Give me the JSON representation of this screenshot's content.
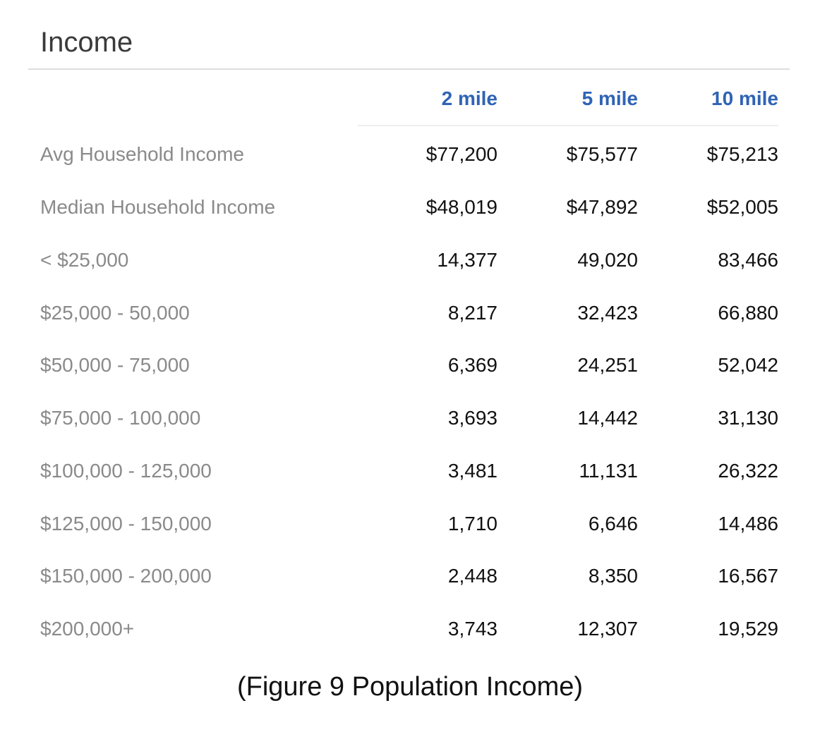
{
  "section_title": "Income",
  "columns": [
    "2 mile",
    "5 mile",
    "10 mile"
  ],
  "rows": [
    {
      "label": "Avg Household Income",
      "values": [
        "$77,200",
        "$75,577",
        "$75,213"
      ]
    },
    {
      "label": "Median Household Income",
      "values": [
        "$48,019",
        "$47,892",
        "$52,005"
      ]
    },
    {
      "label": "< $25,000",
      "values": [
        "14,377",
        "49,020",
        "83,466"
      ]
    },
    {
      "label": "$25,000 - 50,000",
      "values": [
        "8,217",
        "32,423",
        "66,880"
      ]
    },
    {
      "label": "$50,000 - 75,000",
      "values": [
        "6,369",
        "24,251",
        "52,042"
      ]
    },
    {
      "label": "$75,000 - 100,000",
      "values": [
        "3,693",
        "14,442",
        "31,130"
      ]
    },
    {
      "label": "$100,000 - 125,000",
      "values": [
        "3,481",
        "11,131",
        "26,322"
      ]
    },
    {
      "label": "$125,000 - 150,000",
      "values": [
        "1,710",
        "6,646",
        "14,486"
      ]
    },
    {
      "label": "$150,000 - 200,000",
      "values": [
        "2,448",
        "8,350",
        "16,567"
      ]
    },
    {
      "label": "$200,000+",
      "values": [
        "3,743",
        "12,307",
        "19,529"
      ]
    }
  ],
  "caption": "(Figure 9 Population Income)",
  "colors": {
    "header_blue": "#2f63b5",
    "label_gray": "#8a8a8a",
    "value_black": "#111111"
  }
}
